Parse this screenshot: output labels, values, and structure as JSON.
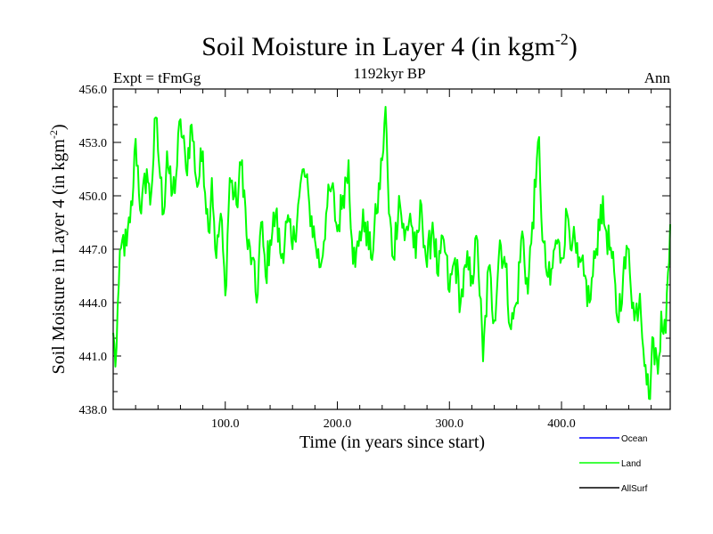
{
  "chart_data": {
    "type": "line",
    "title": "Soil Moisture in Layer 4 (in kgm",
    "title_superscript": "-2",
    "title_close": ")",
    "subtitle": "1192kyr BP",
    "left_label": "Expt = tFmGg",
    "right_label": "Ann",
    "xlabel": "Time (in years since start)",
    "ylabel": "Soil Moisture in Layer 4 (in kgm",
    "ylabel_superscript": "-2",
    "ylabel_close": ")",
    "xlim": [
      0,
      497
    ],
    "ylim": [
      438.0,
      456.0
    ],
    "x_ticks": [
      100,
      200,
      300,
      400
    ],
    "x_tick_labels": [
      "100.0",
      "200.0",
      "300.0",
      "400.0"
    ],
    "y_ticks": [
      438,
      441,
      444,
      447,
      450,
      453,
      456
    ],
    "y_tick_labels": [
      "438.0",
      "441.0",
      "444.0",
      "447.0",
      "450.0",
      "453.0",
      "456.0"
    ],
    "legend": [
      {
        "name": "Ocean",
        "color": "#0000ff"
      },
      {
        "name": "Land",
        "color": "#00ff00"
      },
      {
        "name": "AllSurf",
        "color": "#000000"
      }
    ],
    "series": [
      {
        "name": "Land",
        "color": "#00ff00",
        "anchors": [
          [
            0,
            442.3
          ],
          [
            2,
            440.4
          ],
          [
            5,
            445.0
          ],
          [
            8,
            447.5
          ],
          [
            12,
            447.2
          ],
          [
            15,
            448.5
          ],
          [
            18,
            450.5
          ],
          [
            20,
            453.2
          ],
          [
            25,
            449.0
          ],
          [
            30,
            451.5
          ],
          [
            33,
            449.5
          ],
          [
            38,
            454.4
          ],
          [
            42,
            451.0
          ],
          [
            45,
            449.0
          ],
          [
            48,
            452.5
          ],
          [
            52,
            450.0
          ],
          [
            56,
            451.0
          ],
          [
            60,
            454.3
          ],
          [
            65,
            451.5
          ],
          [
            70,
            454.0
          ],
          [
            75,
            450.5
          ],
          [
            80,
            452.5
          ],
          [
            85,
            448.0
          ],
          [
            88,
            451.0
          ],
          [
            92,
            446.5
          ],
          [
            96,
            449.0
          ],
          [
            100,
            444.4
          ],
          [
            104,
            451.0
          ],
          [
            110,
            449.5
          ],
          [
            115,
            452.0
          ],
          [
            120,
            447.0
          ],
          [
            124,
            446.5
          ],
          [
            128,
            444.0
          ],
          [
            132,
            448.5
          ],
          [
            136,
            445.5
          ],
          [
            140,
            447.5
          ],
          [
            145,
            449.0
          ],
          [
            150,
            446.5
          ],
          [
            155,
            448.5
          ],
          [
            160,
            447.0
          ],
          [
            165,
            449.5
          ],
          [
            170,
            451.5
          ],
          [
            175,
            449.5
          ],
          [
            180,
            447.5
          ],
          [
            185,
            446.0
          ],
          [
            190,
            449.0
          ],
          [
            195,
            450.5
          ],
          [
            200,
            448.0
          ],
          [
            205,
            450.0
          ],
          [
            210,
            452.0
          ],
          [
            213,
            447.5
          ],
          [
            216,
            446.0
          ],
          [
            220,
            448.0
          ],
          [
            225,
            448.5
          ],
          [
            230,
            446.5
          ],
          [
            235,
            449.0
          ],
          [
            240,
            452.0
          ],
          [
            243,
            455.0
          ],
          [
            246,
            449.0
          ],
          [
            250,
            446.5
          ],
          [
            255,
            450.0
          ],
          [
            260,
            447.5
          ],
          [
            265,
            449.0
          ],
          [
            270,
            446.5
          ],
          [
            275,
            449.5
          ],
          [
            280,
            446.0
          ],
          [
            285,
            448.5
          ],
          [
            290,
            445.5
          ],
          [
            295,
            447.5
          ],
          [
            300,
            444.6
          ],
          [
            305,
            446.5
          ],
          [
            310,
            444.0
          ],
          [
            315,
            446.0
          ],
          [
            320,
            445.5
          ],
          [
            325,
            447.5
          ],
          [
            330,
            440.7
          ],
          [
            335,
            446.0
          ],
          [
            340,
            443.0
          ],
          [
            345,
            447.5
          ],
          [
            350,
            446.0
          ],
          [
            355,
            442.5
          ],
          [
            360,
            444.0
          ],
          [
            365,
            448.0
          ],
          [
            370,
            444.5
          ],
          [
            374,
            448.5
          ],
          [
            377,
            450.5
          ],
          [
            380,
            453.3
          ],
          [
            383,
            447.5
          ],
          [
            386,
            446.0
          ],
          [
            390,
            445.0
          ],
          [
            395,
            447.5
          ],
          [
            400,
            446.5
          ],
          [
            405,
            449.0
          ],
          [
            410,
            447.5
          ],
          [
            415,
            446.0
          ],
          [
            420,
            445.5
          ],
          [
            425,
            444.0
          ],
          [
            430,
            446.5
          ],
          [
            435,
            449.5
          ],
          [
            440,
            448.0
          ],
          [
            445,
            446.5
          ],
          [
            450,
            443.0
          ],
          [
            455,
            445.5
          ],
          [
            460,
            447.0
          ],
          [
            465,
            443.0
          ],
          [
            470,
            444.5
          ],
          [
            475,
            440.5
          ],
          [
            478,
            438.6
          ],
          [
            482,
            442.0
          ],
          [
            486,
            440.0
          ],
          [
            489,
            443.5
          ],
          [
            493,
            442.3
          ],
          [
            497,
            448.4
          ]
        ]
      }
    ]
  }
}
